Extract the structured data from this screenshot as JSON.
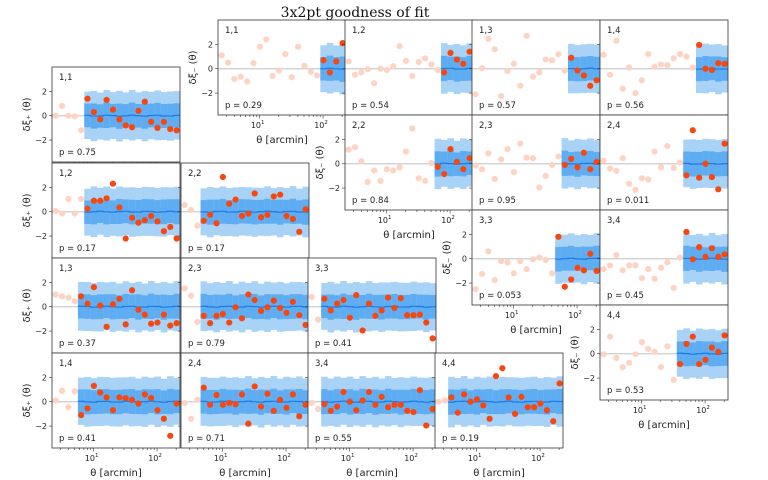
{
  "chart_data": {
    "type": "scatter",
    "title": "3x2pt goodness of fit",
    "xlabel": "θ [arcmin]",
    "ylabel_plus": "δξ₊ (θ)",
    "ylabel_minus": "δξ₋ (θ)",
    "xscale": "log",
    "xlim": [
      2.2,
      230
    ],
    "ylim": [
      -3.8,
      4.0
    ],
    "grid": false,
    "x_ticks": [
      {
        "value": 10,
        "base": "10",
        "exp": "1"
      },
      {
        "value": 100,
        "base": "10",
        "exp": "2"
      }
    ],
    "y_ticks": [
      {
        "value": -2,
        "label": "−2"
      },
      {
        "value": 0,
        "label": "0"
      },
      {
        "value": 2,
        "label": "2"
      }
    ],
    "theta_bins": [
      2.51,
      3.17,
      3.99,
      5.03,
      6.34,
      7.99,
      10.07,
      12.69,
      15.99,
      20.14,
      25.39,
      31.99,
      40.32,
      50.8,
      64.01,
      80.66,
      101.6,
      128.1,
      161.4,
      203.4
    ],
    "model_band": {
      "sigma_1": 1.0,
      "sigma_2": 2.0
    },
    "colors": {
      "band_outer": "#a9d2f7",
      "band_inner": "#5eacf2",
      "model_line": "#1e7be6",
      "point_used": "#f5470f",
      "point_excluded": "#fdd3c3",
      "zero_line": "#cccccc"
    },
    "panels": [
      {
        "stat": "plus",
        "label": "1,1",
        "p": "p = 0.75",
        "n_excluded": 5,
        "y": [
          0.0,
          0.8,
          0.0,
          -0.05,
          -1.2,
          1.4,
          0.3,
          -0.3,
          1.3,
          0.5,
          -0.3,
          -0.8,
          -0.95,
          0.4,
          1.15,
          -0.5,
          -1.0,
          -0.5,
          -1.1,
          -1.2
        ]
      },
      {
        "stat": "plus",
        "label": "1,2",
        "p": "p = 0.17",
        "n_excluded": 5,
        "y": [
          0.05,
          -0.15,
          1.05,
          -0.15,
          1.05,
          0.25,
          0.9,
          0.9,
          1.1,
          2.3,
          0.35,
          -2.2,
          -0.5,
          -0.9,
          -0.7,
          -0.35,
          -0.8,
          -1.6,
          -1.25,
          -2.2
        ]
      },
      {
        "stat": "plus",
        "label": "2,2",
        "p": "p = 0.17",
        "n_excluded": 3,
        "y": [
          0.55,
          0.15,
          -1.15,
          -0.75,
          -0.25,
          -0.95,
          2.85,
          0.65,
          1.0,
          -0.35,
          -0.15,
          1.5,
          -0.45,
          -0.25,
          1.25,
          1.4,
          -0.35,
          -0.6,
          -1.65,
          0.2
        ]
      },
      {
        "stat": "plus",
        "label": "1,3",
        "p": "p = 0.37",
        "n_excluded": 4,
        "y": [
          1.0,
          0.85,
          0.75,
          0.45,
          0.85,
          0.25,
          1.6,
          0.1,
          -1.65,
          0.2,
          0.65,
          -1.45,
          1.35,
          -0.25,
          -0.65,
          -1.4,
          -1.3,
          -0.65,
          -1.55,
          -1.35
        ]
      },
      {
        "stat": "plus",
        "label": "2,3",
        "p": "p = 0.79",
        "n_excluded": 3,
        "y": [
          1.5,
          0.9,
          -1.25,
          -0.75,
          -1.35,
          -0.75,
          -0.6,
          -1.3,
          -0.05,
          -0.95,
          1.0,
          0.55,
          -0.35,
          -0.05,
          0.5,
          -0.1,
          -0.5,
          0.4,
          -0.7,
          -1.5
        ]
      },
      {
        "stat": "plus",
        "label": "3,3",
        "p": "p = 0.41",
        "n_excluded": 2,
        "y": [
          0.8,
          -1.05,
          0.65,
          -0.3,
          0.25,
          0.55,
          -0.9,
          0.95,
          -1.95,
          0.25,
          -0.75,
          -0.3,
          0.75,
          -0.1,
          0.7,
          -0.7,
          -0.7,
          -0.65,
          -1.3,
          -2.6
        ]
      },
      {
        "stat": "plus",
        "label": "1,4",
        "p": "p = 0.41",
        "n_excluded": 4,
        "y": [
          0.1,
          0.9,
          -0.45,
          0.85,
          -1.1,
          -0.55,
          1.3,
          0.75,
          0.35,
          -0.7,
          0.35,
          0.3,
          0.15,
          -0.15,
          0.6,
          0.3,
          -0.7,
          -1.4,
          -2.8,
          -0.15
        ]
      },
      {
        "stat": "plus",
        "label": "2,4",
        "p": "p = 0.71",
        "n_excluded": 3,
        "y": [
          -0.1,
          -1.4,
          0.15,
          1.15,
          -0.25,
          0.55,
          -0.25,
          -0.1,
          -0.2,
          0.6,
          -1.8,
          1.25,
          -0.4,
          0.65,
          -0.75,
          0.15,
          -0.5,
          0.6,
          -1.2,
          -0.25
        ]
      },
      {
        "stat": "plus",
        "label": "3,4",
        "p": "p = 0.55",
        "n_excluded": 2,
        "y": [
          -0.1,
          -0.6,
          -0.2,
          -0.75,
          -0.4,
          0.8,
          0.0,
          -0.7,
          0.1,
          0.8,
          -0.25,
          0.4,
          -0.45,
          -0.25,
          -0.25,
          -0.75,
          -0.85,
          0.95,
          -1.95,
          -0.6
        ]
      },
      {
        "stat": "plus",
        "label": "4,4",
        "p": "p = 0.19",
        "n_excluded": 2,
        "y": [
          0.0,
          0.1,
          0.35,
          -0.9,
          0.6,
          0.0,
          0.2,
          -0.3,
          -1.4,
          2.1,
          2.75,
          0.35,
          -1.0,
          0.4,
          -0.45,
          -0.45,
          -0.15,
          -0.7,
          -1.6,
          1.5
        ]
      },
      {
        "stat": "minus",
        "label": "1,1",
        "p": "p = 0.29",
        "n_excluded": 16,
        "y": [
          1.1,
          0.5,
          -0.85,
          -0.65,
          -1.05,
          0.45,
          1.8,
          2.4,
          -0.6,
          -0.15,
          1.2,
          -0.7,
          1.8,
          0.25,
          -0.25,
          -0.55,
          0.7,
          -0.3,
          0.6,
          2.1
        ]
      },
      {
        "stat": "minus",
        "label": "1,2",
        "p": "p = 0.54",
        "n_excluded": 15,
        "y": [
          0.6,
          -0.5,
          -0.3,
          -0.05,
          -1.2,
          0.0,
          -0.1,
          0.2,
          1.85,
          0.65,
          -0.6,
          0.55,
          0.85,
          0.35,
          -0.1,
          -0.3,
          1.3,
          0.75,
          0.4,
          1.4
        ]
      },
      {
        "stat": "minus",
        "label": "1,3",
        "p": "p = 0.57",
        "n_excluded": 15,
        "y": [
          -2.1,
          0.05,
          2.45,
          1.6,
          -2.25,
          -0.2,
          0.4,
          -1.4,
          2.7,
          -0.65,
          -0.3,
          0.75,
          0.7,
          1.2,
          -0.15,
          0.9,
          -0.15,
          -0.55,
          -1.4,
          -0.95
        ]
      },
      {
        "stat": "minus",
        "label": "1,4",
        "p": "p = 0.56",
        "n_excluded": 15,
        "y": [
          1.15,
          -0.5,
          2.3,
          -1.65,
          0.1,
          -2.0,
          -0.95,
          1.2,
          0.15,
          0.35,
          0.3,
          0.85,
          1.2,
          1.0,
          0.1,
          1.95,
          0.0,
          -0.1,
          0.45,
          0.4
        ]
      },
      {
        "stat": "minus",
        "label": "2,2",
        "p": "p = 0.84",
        "n_excluded": 14,
        "y": [
          1.15,
          1.35,
          0.2,
          -1.5,
          -0.55,
          -1.4,
          -0.45,
          -0.55,
          -0.3,
          1.0,
          2.9,
          -1.2,
          -1.4,
          0.05,
          -0.25,
          -0.85,
          1.2,
          0.15,
          -0.45,
          0.45
        ]
      },
      {
        "stat": "minus",
        "label": "2,3",
        "p": "p = 0.95",
        "n_excluded": 14,
        "y": [
          -0.15,
          -0.45,
          0.85,
          -1.25,
          0.35,
          1.2,
          -0.7,
          1.65,
          0.5,
          0.45,
          -1.95,
          -1.0,
          -0.1,
          0.6,
          -0.1,
          0.4,
          -0.3,
          0.9,
          -0.45,
          0.15
        ]
      },
      {
        "stat": "minus",
        "label": "2,4",
        "p": "p = 0.011",
        "n_excluded": 13,
        "y": [
          0.25,
          -0.4,
          -0.6,
          0.45,
          -1.65,
          -2.15,
          -1.2,
          -1.3,
          1.0,
          -0.3,
          1.45,
          -0.35,
          0.1,
          -0.95,
          2.75,
          -1.15,
          0.0,
          -1.1,
          -2.1,
          1.65
        ]
      },
      {
        "stat": "minus",
        "label": "3,3",
        "p": "p = 0.053",
        "n_excluded": 13,
        "y": [
          -2.5,
          -1.25,
          0.6,
          -1.75,
          -0.2,
          -0.3,
          -1.2,
          -0.2,
          -0.85,
          -0.05,
          0.1,
          -0.1,
          -1.2,
          1.8,
          -2.3,
          -1.7,
          -0.75,
          -0.95,
          0.4,
          -1.0
        ]
      },
      {
        "stat": "minus",
        "label": "3,4",
        "p": "p = 0.45",
        "n_excluded": 13,
        "y": [
          -0.85,
          -0.55,
          0.3,
          -0.95,
          -0.55,
          -0.55,
          -1.6,
          -0.85,
          -1.65,
          -0.75,
          -0.3,
          -2.4,
          0.1,
          2.2,
          -0.05,
          0.95,
          0.15,
          0.85,
          0.15,
          0.35
        ]
      },
      {
        "stat": "minus",
        "label": "4,4",
        "p": "p = 0.53",
        "n_excluded": 12,
        "y": [
          -0.05,
          1.4,
          -0.35,
          -1.1,
          -0.75,
          -0.05,
          0.95,
          0.4,
          0.15,
          -1.1,
          0.6,
          -2.15,
          -0.85,
          0.8,
          1.4,
          -0.85,
          -0.5,
          0.5,
          0.15,
          1.5
        ]
      }
    ]
  }
}
